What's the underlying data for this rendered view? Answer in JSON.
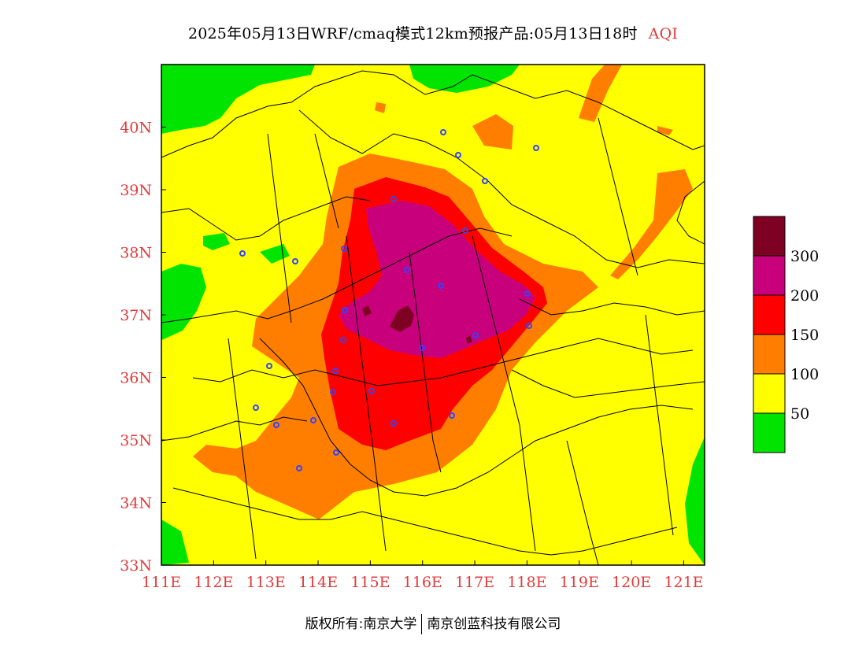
{
  "header": {
    "title": "2025年05月13日WRF/cmaq模式12km预报产品:05月13日18时",
    "variable": "AQI"
  },
  "map": {
    "lon_range": [
      111,
      121.4
    ],
    "lat_range": [
      33,
      41
    ],
    "lon_ticks": [
      "111E",
      "112E",
      "113E",
      "114E",
      "115E",
      "116E",
      "117E",
      "118E",
      "119E",
      "120E",
      "121E"
    ],
    "lat_ticks": [
      "33N",
      "34N",
      "35N",
      "36N",
      "37N",
      "38N",
      "39N",
      "40N"
    ],
    "tick_color": "#e23b3b"
  },
  "legend": {
    "labels": [
      "50",
      "100",
      "150",
      "200",
      "300"
    ],
    "colors": [
      "#00e400",
      "#ffff00",
      "#ff7e00",
      "#ff0000",
      "#c8007c",
      "#7e0023"
    ]
  },
  "footer": {
    "left": "版权所有:南京大学",
    "right": "南京创蓝科技有限公司"
  }
}
